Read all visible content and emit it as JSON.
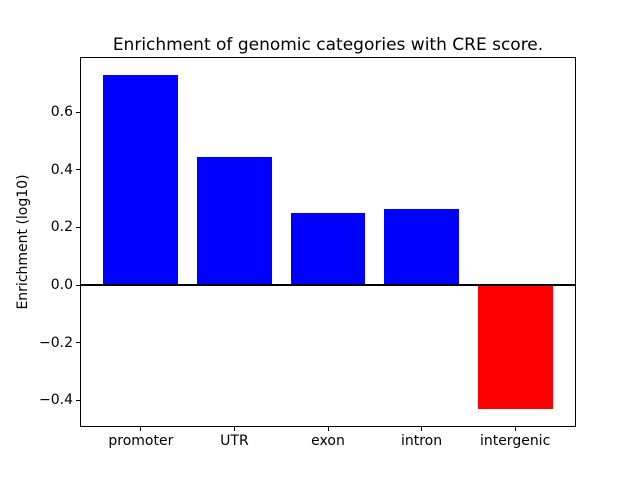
{
  "figure": {
    "background": "#ffffff",
    "frame_color": "#000000"
  },
  "chart_data": {
    "type": "bar",
    "title": "Enrichment of genomic categories with CRE score.",
    "xlabel": "",
    "ylabel": "Enrichment (log10)",
    "categories": [
      "promoter",
      "UTR",
      "exon",
      "intron",
      "intergenic"
    ],
    "values": [
      0.73,
      0.446,
      0.249,
      0.265,
      -0.431
    ],
    "bar_colors": [
      "#0000ff",
      "#0000ff",
      "#0000ff",
      "#0000ff",
      "#ff0000"
    ],
    "positive_color": "#0000ff",
    "negative_color": "#ff0000",
    "bar_width": 0.8,
    "xlim": [
      -0.64,
      4.64
    ],
    "ylim": [
      -0.489,
      0.788
    ],
    "yticks": [
      0.6,
      0.4,
      0.2,
      0.0,
      -0.2,
      -0.4
    ],
    "ytick_labels": [
      "0.6",
      "0.4",
      "0.2",
      "0.0",
      "−0.2",
      "−0.4"
    ],
    "zero_line": true,
    "grid": false,
    "legend_position": "none",
    "axis_color": "#000000"
  }
}
